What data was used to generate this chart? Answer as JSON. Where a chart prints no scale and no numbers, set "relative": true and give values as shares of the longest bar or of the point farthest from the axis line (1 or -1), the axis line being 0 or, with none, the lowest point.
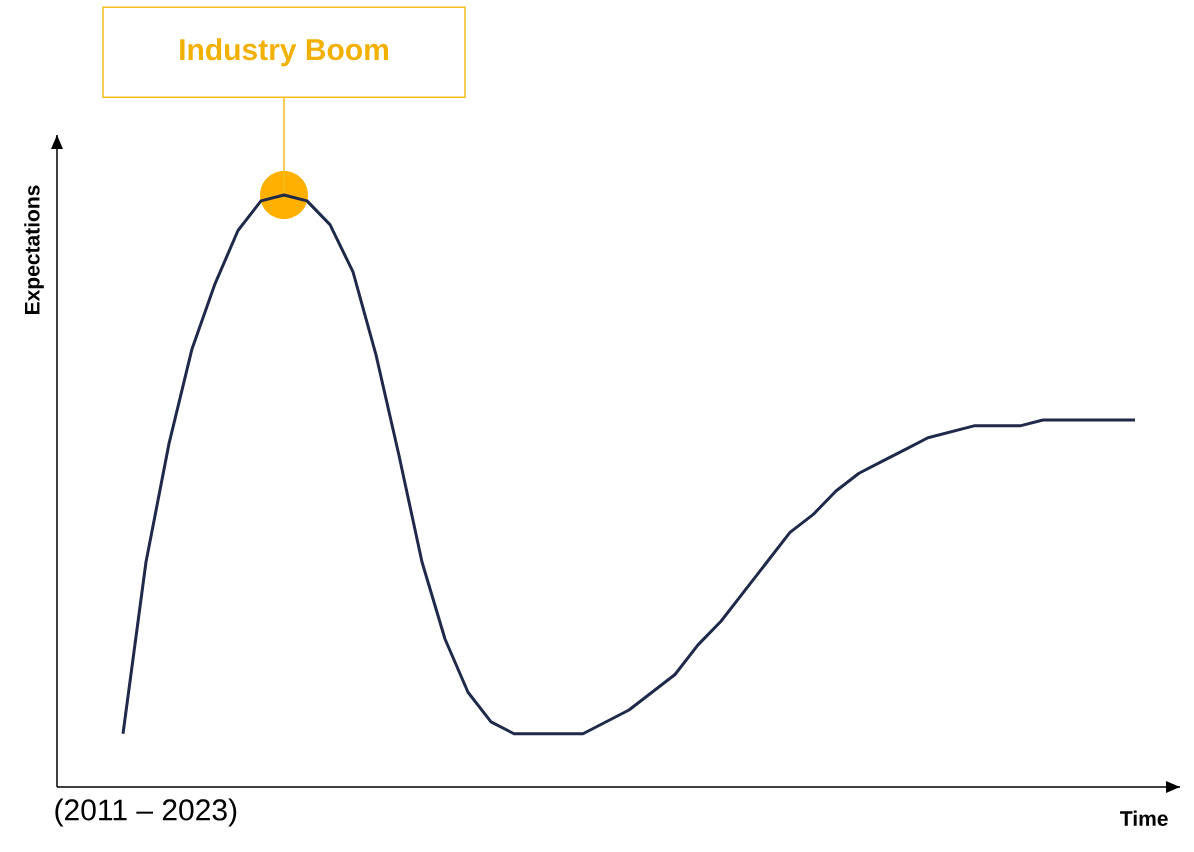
{
  "chart_data": {
    "type": "line",
    "relative": true,
    "xlabel": "Time",
    "ylabel": "Expectations",
    "color": "#1f2a4a",
    "categories": [
      null,
      null,
      null,
      null,
      null,
      null,
      null,
      null,
      null,
      null,
      null,
      null,
      null,
      null,
      null,
      null,
      null,
      null,
      null,
      null,
      null,
      null,
      null,
      null,
      null,
      null,
      null,
      null,
      null,
      null,
      null,
      null,
      null,
      null,
      null,
      null,
      null,
      null,
      null,
      null,
      null,
      null,
      null,
      null,
      null
    ],
    "values": [
      0.09,
      0.38,
      0.58,
      0.74,
      0.85,
      0.94,
      0.99,
      1,
      0.99,
      0.95,
      0.87,
      0.73,
      0.56,
      0.38,
      0.25,
      0.16,
      0.11,
      0.09,
      0.09,
      0.09,
      0.09,
      0.11,
      0.13,
      0.16,
      0.19,
      0.24,
      0.28,
      0.33,
      0.38,
      0.43,
      0.46,
      0.5,
      0.53,
      0.55,
      0.57,
      0.59,
      0.6,
      0.61,
      0.61,
      0.61,
      0.62,
      0.62,
      0.62,
      0.62,
      0.62
    ],
    "annotations": [
      {
        "text": "Industry Boom",
        "y": 1
      },
      "(2011 – 2023)"
    ]
  }
}
